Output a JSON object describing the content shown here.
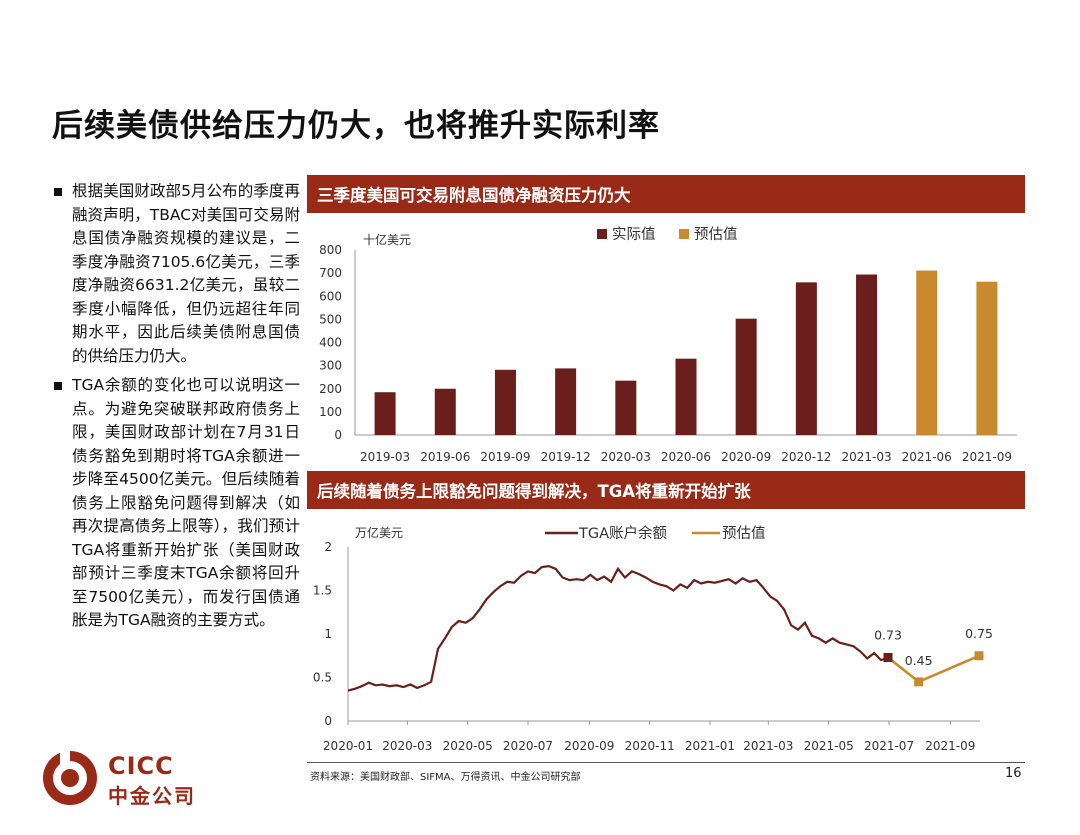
{
  "page": {
    "title": "后续美债供给压力仍大，也将推升实际利率",
    "bullets": [
      "根据美国财政部5月公布的季度再融资声明，TBAC对美国可交易附息国债净融资规模的建议是，二季度净融资7105.6亿美元，三季度净融资6631.2亿美元，虽较二季度小幅降低，但仍远超往年同期水平，因此后续美债附息国债的供给压力仍大。",
      "TGA余额的变化也可以说明这一点。为避免突破联邦政府债务上限，美国财政部计划在7月31日债务豁免到期时将TGA余额进一步降至4500亿美元。但后续随着债务上限豁免问题得到解决（如再次提高债务上限等），我们预计TGA将重新开始扩张（美国财政部预计三季度末TGA余额将回升至7500亿美元），而发行国债通胀是为TGA融资的主要方式。"
    ],
    "source": "资料来源：美国财政部、SIFMA、万得资讯、中金公司研究部",
    "page_number": "16",
    "logo": {
      "en": "CICC",
      "cn": "中金公司"
    }
  },
  "chart_data": [
    {
      "type": "bar",
      "title": "三季度美国可交易附息国债净融资压力仍大",
      "unit_label": "十亿美元",
      "categories": [
        "2019-03",
        "2019-06",
        "2019-09",
        "2019-12",
        "2020-03",
        "2020-06",
        "2020-09",
        "2020-12",
        "2021-03",
        "2021-06",
        "2021-09"
      ],
      "series": [
        {
          "name": "实际值",
          "color": "#6b1f1c",
          "values": [
            185,
            200,
            282,
            288,
            235,
            330,
            503,
            660,
            694,
            null,
            null
          ]
        },
        {
          "name": "预估值",
          "color": "#c98a2f",
          "values": [
            null,
            null,
            null,
            null,
            null,
            null,
            null,
            null,
            null,
            711,
            663
          ]
        }
      ],
      "ylim": [
        0,
        800
      ],
      "yticks": [
        0,
        100,
        200,
        300,
        400,
        500,
        600,
        700,
        800
      ],
      "legend": "top-center"
    },
    {
      "type": "line",
      "title": "后续随着债务上限豁免问题得到解决，TGA将重新开始扩张",
      "unit_label": "万亿美元",
      "x_ticks": [
        "2020-01",
        "2020-03",
        "2020-05",
        "2020-07",
        "2020-09",
        "2020-11",
        "2021-01",
        "2021-03",
        "2021-05",
        "2021-07",
        "2021-09"
      ],
      "ylim": [
        0,
        2
      ],
      "yticks": [
        "0",
        "0.5",
        "1",
        "1.5",
        "2"
      ],
      "legend": "top-center",
      "series": [
        {
          "name": "TGA账户余额",
          "color": "#6b1f1c",
          "x": [
            "2020-01-01",
            "2020-01-08",
            "2020-01-15",
            "2020-01-22",
            "2020-01-29",
            "2020-02-05",
            "2020-02-12",
            "2020-02-19",
            "2020-02-26",
            "2020-03-04",
            "2020-03-11",
            "2020-03-18",
            "2020-03-25",
            "2020-04-01",
            "2020-04-08",
            "2020-04-15",
            "2020-04-22",
            "2020-04-29",
            "2020-05-06",
            "2020-05-13",
            "2020-05-20",
            "2020-05-27",
            "2020-06-03",
            "2020-06-10",
            "2020-06-17",
            "2020-06-24",
            "2020-07-01",
            "2020-07-08",
            "2020-07-15",
            "2020-07-22",
            "2020-07-29",
            "2020-08-05",
            "2020-08-12",
            "2020-08-19",
            "2020-08-26",
            "2020-09-02",
            "2020-09-09",
            "2020-09-16",
            "2020-09-23",
            "2020-09-30",
            "2020-10-07",
            "2020-10-14",
            "2020-10-21",
            "2020-10-28",
            "2020-11-04",
            "2020-11-11",
            "2020-11-18",
            "2020-11-25",
            "2020-12-02",
            "2020-12-09",
            "2020-12-16",
            "2020-12-23",
            "2020-12-30",
            "2021-01-06",
            "2021-01-13",
            "2021-01-20",
            "2021-01-27",
            "2021-02-03",
            "2021-02-10",
            "2021-02-17",
            "2021-02-24",
            "2021-03-03",
            "2021-03-10",
            "2021-03-17",
            "2021-03-24",
            "2021-03-31",
            "2021-04-07",
            "2021-04-14",
            "2021-04-21",
            "2021-04-28",
            "2021-05-05",
            "2021-05-12",
            "2021-05-19",
            "2021-05-26",
            "2021-06-02",
            "2021-06-09",
            "2021-06-16",
            "2021-06-23",
            "2021-06-30"
          ],
          "values": [
            0.35,
            0.37,
            0.4,
            0.44,
            0.41,
            0.42,
            0.4,
            0.41,
            0.39,
            0.42,
            0.38,
            0.41,
            0.45,
            0.83,
            0.95,
            1.08,
            1.15,
            1.13,
            1.18,
            1.28,
            1.4,
            1.48,
            1.55,
            1.6,
            1.59,
            1.67,
            1.72,
            1.7,
            1.77,
            1.78,
            1.75,
            1.65,
            1.62,
            1.63,
            1.62,
            1.68,
            1.62,
            1.66,
            1.6,
            1.75,
            1.65,
            1.72,
            1.69,
            1.65,
            1.6,
            1.57,
            1.55,
            1.5,
            1.57,
            1.53,
            1.62,
            1.58,
            1.6,
            1.59,
            1.61,
            1.63,
            1.58,
            1.64,
            1.6,
            1.62,
            1.53,
            1.43,
            1.38,
            1.28,
            1.1,
            1.05,
            1.13,
            0.98,
            0.95,
            0.9,
            0.95,
            0.9,
            0.88,
            0.86,
            0.8,
            0.72,
            0.78,
            0.7,
            0.73
          ]
        },
        {
          "name": "预估值",
          "color": "#c98a2f",
          "x": [
            "2021-06-30",
            "2021-07-31",
            "2021-09-30"
          ],
          "values": [
            0.73,
            0.45,
            0.75
          ]
        }
      ],
      "annotations": [
        "0.73",
        "0.45",
        "0.75"
      ]
    }
  ]
}
